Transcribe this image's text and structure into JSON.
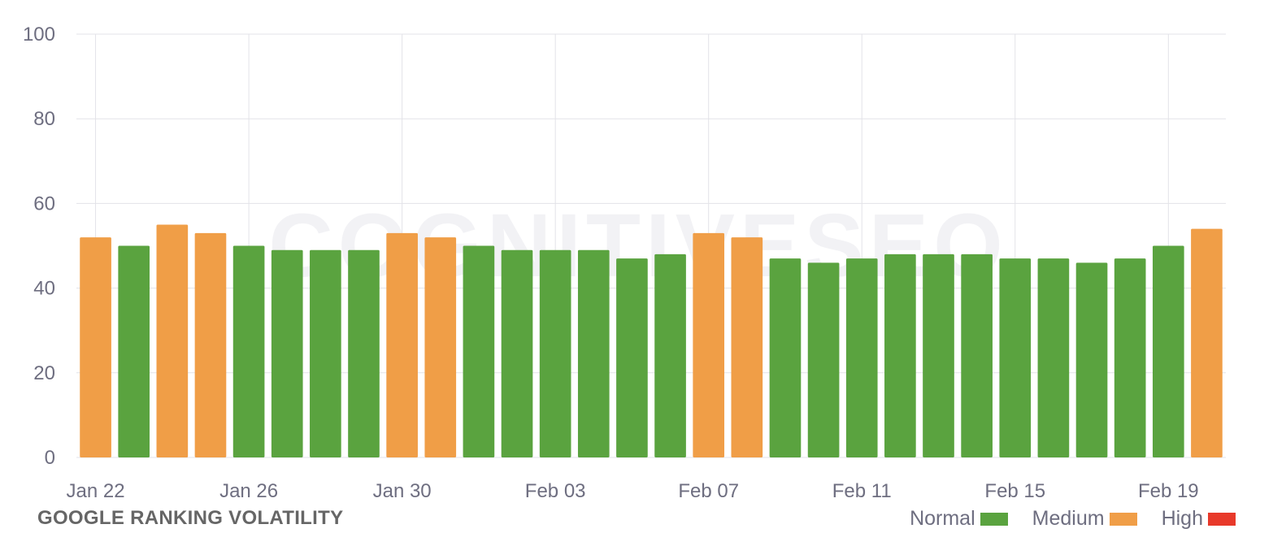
{
  "chart_data": {
    "type": "bar",
    "title": "GOOGLE RANKING VOLATILITY",
    "watermark": "COGNITIVESEO",
    "ylim": [
      0,
      100
    ],
    "yticks": [
      0,
      20,
      40,
      60,
      80,
      100
    ],
    "grid": true,
    "x_tick_labels": [
      "Jan 22",
      "Jan 26",
      "Jan 30",
      "Feb 03",
      "Feb 07",
      "Feb 11",
      "Feb 15",
      "Feb 19"
    ],
    "categories": [
      "Jan 22",
      "Jan 23",
      "Jan 24",
      "Jan 25",
      "Jan 26",
      "Jan 27",
      "Jan 28",
      "Jan 29",
      "Jan 30",
      "Jan 31",
      "Feb 01",
      "Feb 02",
      "Feb 03",
      "Feb 04",
      "Feb 05",
      "Feb 06",
      "Feb 07",
      "Feb 08",
      "Feb 09",
      "Feb 10",
      "Feb 11",
      "Feb 12",
      "Feb 13",
      "Feb 14",
      "Feb 15",
      "Feb 16",
      "Feb 17",
      "Feb 18",
      "Feb 19",
      "Feb 20"
    ],
    "values": [
      52,
      50,
      55,
      53,
      50,
      49,
      49,
      49,
      53,
      52,
      50,
      49,
      49,
      49,
      47,
      48,
      53,
      52,
      47,
      46,
      47,
      48,
      48,
      48,
      47,
      47,
      46,
      47,
      50,
      54
    ],
    "levels": [
      "Medium",
      "Normal",
      "Medium",
      "Medium",
      "Normal",
      "Normal",
      "Normal",
      "Normal",
      "Medium",
      "Medium",
      "Normal",
      "Normal",
      "Normal",
      "Normal",
      "Normal",
      "Normal",
      "Medium",
      "Medium",
      "Normal",
      "Normal",
      "Normal",
      "Normal",
      "Normal",
      "Normal",
      "Normal",
      "Normal",
      "Normal",
      "Normal",
      "Normal",
      "Medium"
    ],
    "legend_position": "bottom-right",
    "legend": [
      {
        "label": "Normal",
        "color": "#5aa33f"
      },
      {
        "label": "Medium",
        "color": "#f09e47"
      },
      {
        "label": "High",
        "color": "#e8392a"
      }
    ]
  }
}
